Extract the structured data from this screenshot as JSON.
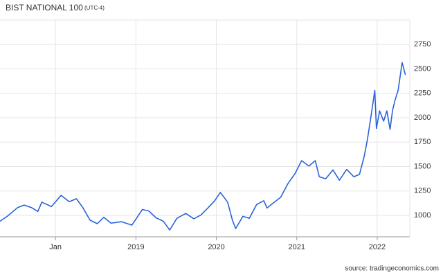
{
  "chart_data": {
    "type": "line",
    "title": "BIST NATIONAL 100",
    "subtitle": "(UTC-4)",
    "source": "source: tradingeconomics.com",
    "x": [
      2017.31,
      2017.4,
      2017.53,
      2017.61,
      2017.7,
      2017.78,
      2017.83,
      2017.95,
      2018.07,
      2018.17,
      2018.26,
      2018.34,
      2018.43,
      2018.52,
      2018.6,
      2018.69,
      2018.82,
      2018.95,
      2019.08,
      2019.16,
      2019.25,
      2019.34,
      2019.42,
      2019.51,
      2019.62,
      2019.72,
      2019.81,
      2019.9,
      2019.98,
      2020.05,
      2020.14,
      2020.2,
      2020.24,
      2020.33,
      2020.41,
      2020.5,
      2020.59,
      2020.63,
      2020.72,
      2020.8,
      2020.89,
      2020.98,
      2021.06,
      2021.15,
      2021.23,
      2021.28,
      2021.36,
      2021.45,
      2021.53,
      2021.62,
      2021.71,
      2021.78,
      2021.84,
      2021.88,
      2021.92,
      2021.97,
      2021.99,
      2022.03,
      2022.08,
      2022.12,
      2022.16,
      2022.19,
      2022.22,
      2022.26,
      2022.31,
      2022.35
    ],
    "series": [
      {
        "name": "BIST NATIONAL 100",
        "color": "#2962d9",
        "values": [
          940,
          990,
          1080,
          1105,
          1080,
          1040,
          1135,
          1090,
          1205,
          1140,
          1170,
          1080,
          950,
          915,
          980,
          920,
          935,
          900,
          1060,
          1045,
          975,
          940,
          850,
          970,
          1020,
          965,
          1005,
          1080,
          1150,
          1235,
          1135,
          950,
          865,
          990,
          970,
          1110,
          1150,
          1075,
          1135,
          1185,
          1325,
          1430,
          1560,
          1505,
          1560,
          1395,
          1375,
          1465,
          1360,
          1470,
          1395,
          1420,
          1610,
          1785,
          2000,
          2280,
          1890,
          2070,
          1965,
          2070,
          1880,
          2070,
          2175,
          2280,
          2565,
          2440
        ]
      }
    ],
    "xlim": [
      2017.31,
      2022.405
    ],
    "xticks": [
      {
        "value": 2018,
        "label": "Jan"
      },
      2019,
      2020,
      2021,
      2022
    ],
    "ylim": [
      780,
      3000
    ],
    "yticks": [
      1000,
      1250,
      1500,
      1750,
      2000,
      2250,
      2500,
      2750
    ],
    "grid": true
  }
}
